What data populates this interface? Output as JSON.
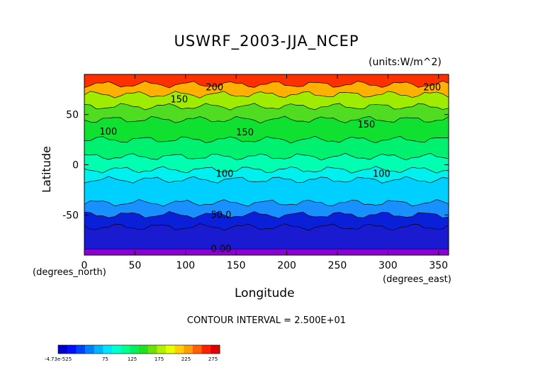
{
  "chart_data": {
    "type": "heatmap",
    "title": "USWRF_2003-JJA_NCEP",
    "units": "(units:W/m^2)",
    "xlabel": "Longitude",
    "ylabel": "Latitude",
    "x_axis_note": "(degrees_east)",
    "y_axis_note": "(degrees_north)",
    "xlim": [
      0,
      360
    ],
    "ylim": [
      -90,
      90
    ],
    "xticks": [
      0,
      50,
      100,
      150,
      200,
      250,
      300,
      350
    ],
    "yticks": [
      -50,
      0,
      50
    ],
    "contour_interval_text": "CONTOUR INTERVAL = 2.500E+01",
    "contour_labels": [
      {
        "text": "200",
        "lon": 120,
        "lat": 77
      },
      {
        "text": "150",
        "lon": 85,
        "lat": 65
      },
      {
        "text": "100",
        "lon": 15,
        "lat": 33
      },
      {
        "text": "150",
        "lon": 150,
        "lat": 32
      },
      {
        "text": "150",
        "lon": 270,
        "lat": 40
      },
      {
        "text": "200",
        "lon": 335,
        "lat": 77
      },
      {
        "text": "100",
        "lon": 130,
        "lat": -9
      },
      {
        "text": "100",
        "lon": 285,
        "lat": -9
      },
      {
        "text": "50.0",
        "lon": 125,
        "lat": -50
      },
      {
        "text": "0.00",
        "lon": 125,
        "lat": -84
      }
    ],
    "latitude_bands": [
      {
        "lat_from": 90,
        "lat_to": 80,
        "value": 262
      },
      {
        "lat_from": 80,
        "lat_to": 70,
        "value": 205
      },
      {
        "lat_from": 70,
        "lat_to": 58,
        "value": 165
      },
      {
        "lat_from": 58,
        "lat_to": 45,
        "value": 150
      },
      {
        "lat_from": 45,
        "lat_to": 25,
        "value": 140
      },
      {
        "lat_from": 25,
        "lat_to": 8,
        "value": 130
      },
      {
        "lat_from": 8,
        "lat_to": -5,
        "value": 110
      },
      {
        "lat_from": -5,
        "lat_to": -15,
        "value": 100
      },
      {
        "lat_from": -15,
        "lat_to": -38,
        "value": 85
      },
      {
        "lat_from": -38,
        "lat_to": -50,
        "value": 62
      },
      {
        "lat_from": -50,
        "lat_to": -62,
        "value": 35
      },
      {
        "lat_from": -62,
        "lat_to": -84,
        "value": 12
      },
      {
        "lat_from": -84,
        "lat_to": -90,
        "value": 0
      }
    ],
    "colorbar": {
      "tick_labels": [
        "-4.73e-525",
        "75",
        "125",
        "175",
        "225",
        "275"
      ],
      "tick_values": [
        -12.5,
        75,
        125,
        175,
        225,
        275
      ],
      "min": -12.5,
      "max": 287.5,
      "colors": [
        "#0000c8",
        "#0010ff",
        "#0040ff",
        "#0080ff",
        "#00b4ff",
        "#00e4ff",
        "#00ffd0",
        "#00ff90",
        "#00f060",
        "#20e020",
        "#70e000",
        "#b0f000",
        "#e8ff00",
        "#ffd000",
        "#ffa000",
        "#ff6000",
        "#ff2000",
        "#e00000"
      ]
    },
    "palette": {
      "p0": "#8c00d0",
      "p5": "#1a1ad0",
      "p15": "#0a20d8",
      "p40": "#1050ff",
      "p60": "#1890ff",
      "p85": "#00d0ff",
      "p100": "#00f0f0",
      "p110": "#00ffb0",
      "p130": "#00f070",
      "p140": "#10e030",
      "p150": "#50dc20",
      "p165": "#a0ec00",
      "p205": "#ffb000",
      "p262": "#ff3000"
    }
  }
}
